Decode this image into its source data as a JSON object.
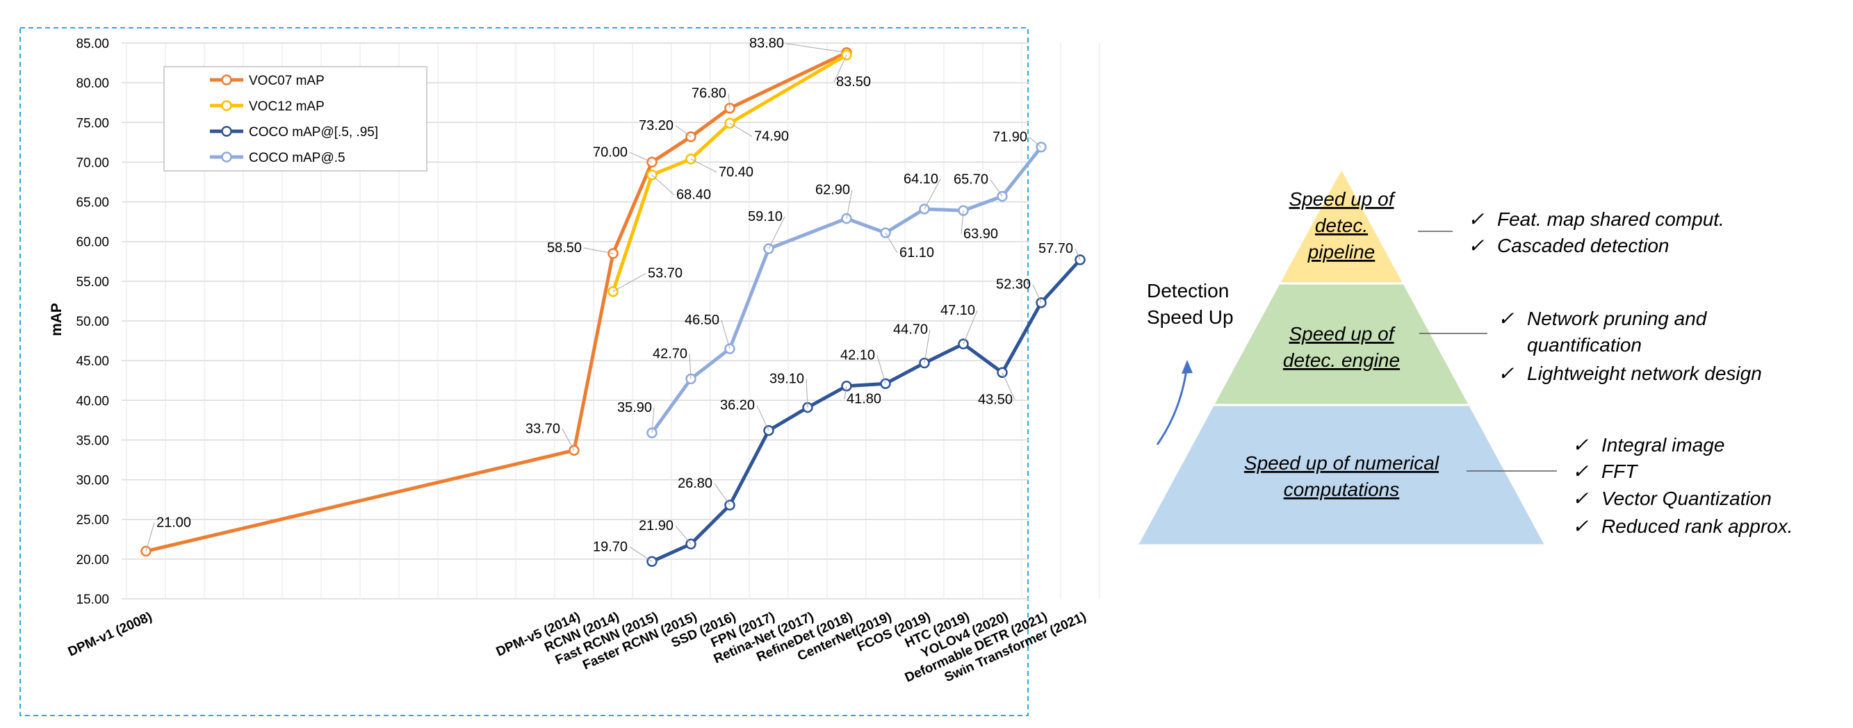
{
  "chart_data": {
    "type": "line",
    "title": "",
    "xlabel": "",
    "ylabel": "mAP",
    "ylim": [
      15,
      85
    ],
    "ytick_labels": [
      "15.00",
      "20.00",
      "25.00",
      "30.00",
      "35.00",
      "40.00",
      "45.00",
      "50.00",
      "55.00",
      "60.00",
      "65.00",
      "70.00",
      "75.00",
      "80.00",
      "85.00"
    ],
    "grid": true,
    "legend_position": "top-left",
    "categories": [
      "DPM-v1 (2008)",
      "",
      "",
      "",
      "",
      "",
      "",
      "",
      "",
      "",
      "",
      "DPM-v5 (2014)",
      "RCNN (2014)",
      "Fast RCNN (2015)",
      "Faster RCNN (2015)",
      "SSD (2016)",
      "FPN (2017)",
      "Retina-Net (2017)",
      "RefineDet (2018)",
      "CenterNet(2019)",
      "FCOS (2019)",
      "HTC (2019)",
      "YOLOv4 (2020)",
      "Deformable DETR (2021)",
      "Swin Transformer (2021)"
    ],
    "series": [
      {
        "name": "VOC07 mAP",
        "color": "#ED7D31",
        "values": [
          21.0,
          null,
          null,
          null,
          null,
          null,
          null,
          null,
          null,
          null,
          null,
          33.7,
          58.5,
          70.0,
          73.2,
          76.8,
          null,
          null,
          83.8,
          null,
          null,
          null,
          null,
          null,
          null
        ],
        "labels": [
          "21.00",
          "",
          "",
          "",
          "",
          "",
          "",
          "",
          "",
          "",
          "",
          "33.70",
          "58.50",
          "70.00",
          "73.20",
          "76.80",
          "",
          "",
          "83.80",
          "",
          "",
          "",
          "",
          "",
          ""
        ]
      },
      {
        "name": "VOC12 mAP",
        "color": "#FFC000",
        "values": [
          null,
          null,
          null,
          null,
          null,
          null,
          null,
          null,
          null,
          null,
          null,
          null,
          53.7,
          68.4,
          70.4,
          74.9,
          null,
          null,
          83.5,
          null,
          null,
          null,
          null,
          null,
          null
        ],
        "labels": [
          "",
          "",
          "",
          "",
          "",
          "",
          "",
          "",
          "",
          "",
          "",
          "",
          "53.70",
          "68.40",
          "70.40",
          "74.90",
          "",
          "",
          "83.50",
          "",
          "",
          "",
          "",
          "",
          ""
        ]
      },
      {
        "name": "COCO mAP@[.5, .95]",
        "color": "#2F5597",
        "values": [
          null,
          null,
          null,
          null,
          null,
          null,
          null,
          null,
          null,
          null,
          null,
          null,
          null,
          19.7,
          21.9,
          26.8,
          36.2,
          39.1,
          41.8,
          42.1,
          44.7,
          47.1,
          43.5,
          52.3,
          57.7
        ],
        "labels": [
          "",
          "",
          "",
          "",
          "",
          "",
          "",
          "",
          "",
          "",
          "",
          "",
          "",
          "19.70",
          "21.90",
          "26.80",
          "36.20",
          "39.10",
          "41.80",
          "42.10",
          "44.70",
          "47.10",
          "43.50",
          "52.30",
          "57.70"
        ]
      },
      {
        "name": "COCO mAP@.5",
        "color": "#8FAADC",
        "values": [
          null,
          null,
          null,
          null,
          null,
          null,
          null,
          null,
          null,
          null,
          null,
          null,
          null,
          35.9,
          42.7,
          46.5,
          59.1,
          null,
          62.9,
          61.1,
          64.1,
          63.9,
          65.7,
          71.9,
          null
        ],
        "labels": [
          "",
          "",
          "",
          "",
          "",
          "",
          "",
          "",
          "",
          "",
          "",
          "",
          "",
          "35.90",
          "42.70",
          "46.50",
          "59.10",
          "",
          "62.90",
          "61.10",
          "64.10",
          "63.90",
          "65.70",
          "71.90",
          ""
        ]
      }
    ]
  },
  "pyramid": {
    "side_title_line1": "Detection",
    "side_title_line2": "Speed Up",
    "levels": [
      {
        "label_lines": [
          "Speed up of",
          "detec.",
          "pipeline"
        ],
        "color": "#FFE699",
        "bullets": [
          "Feat. map shared comput.",
          "Cascaded detection"
        ]
      },
      {
        "label_lines": [
          "Speed up of",
          "detec. engine"
        ],
        "color": "#C5E0B4",
        "bullets": [
          "Network pruning and",
          "quantification",
          "Lightweight network design"
        ]
      },
      {
        "label_lines": [
          "Speed up of numerical",
          "computations"
        ],
        "color": "#BDD7EE",
        "bullets": [
          "Integral image",
          "FFT",
          "Vector Quantization",
          "Reduced rank approx."
        ]
      }
    ],
    "check_mark": "✓",
    "arrow_color": "#4472C4"
  }
}
